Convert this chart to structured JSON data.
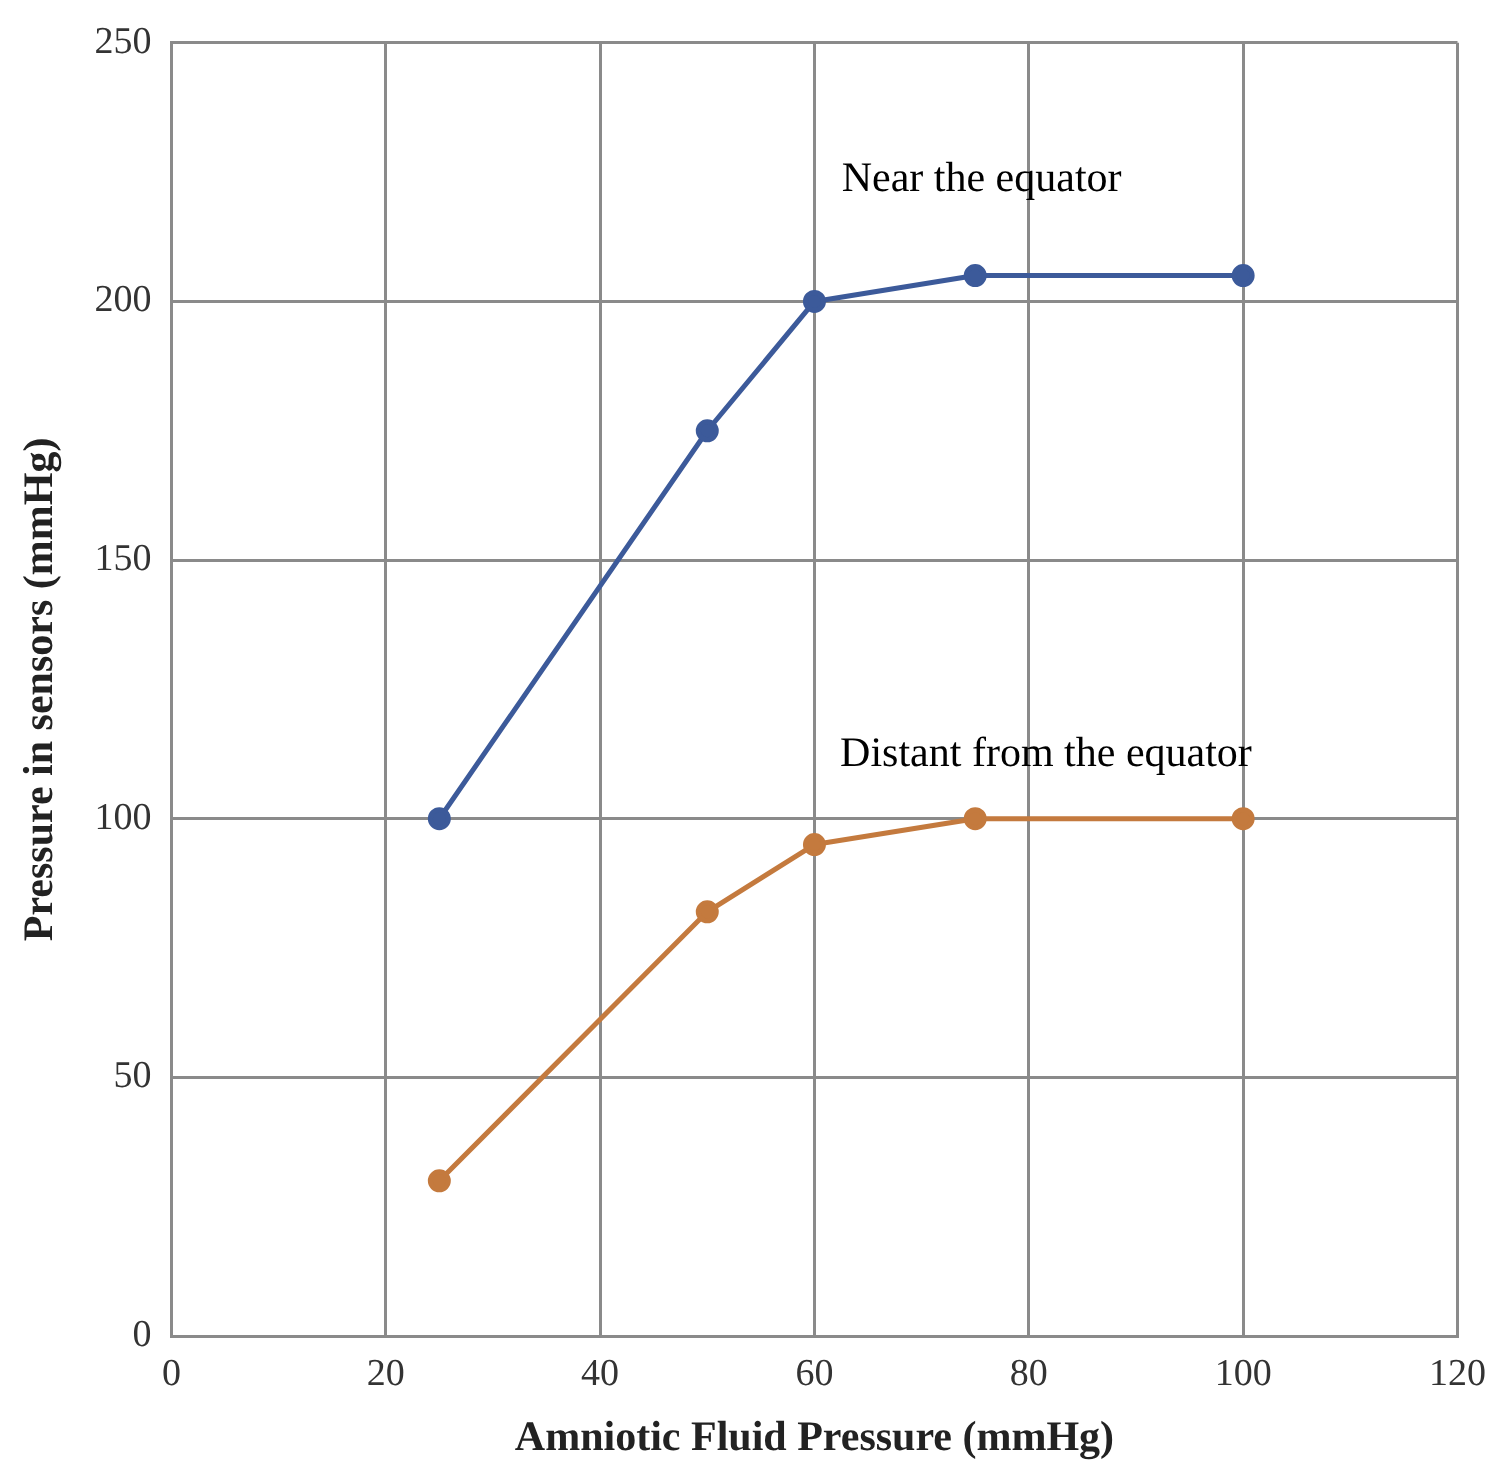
{
  "chart_data": {
    "type": "line",
    "xlabel": "Amniotic Fluid Pressure (mmHg)",
    "ylabel": "Pressure in sensors (mmHg)",
    "x": [
      25,
      50,
      60,
      75,
      100
    ],
    "series": [
      {
        "name": "Near the equator",
        "color": "#3c5a9a",
        "values": [
          100,
          175,
          200,
          205,
          205
        ]
      },
      {
        "name": "Distant from the equator",
        "color": "#c47a3e",
        "values": [
          30,
          82,
          95,
          100,
          100
        ]
      }
    ],
    "xlim": [
      0,
      120
    ],
    "xticks": [
      0,
      20,
      40,
      60,
      80,
      100,
      120
    ],
    "ylim": [
      0,
      250
    ],
    "yticks": [
      0,
      50,
      100,
      150,
      200,
      250
    ],
    "grid": true,
    "legend": false,
    "marker": "circle",
    "line_style": "solid"
  }
}
